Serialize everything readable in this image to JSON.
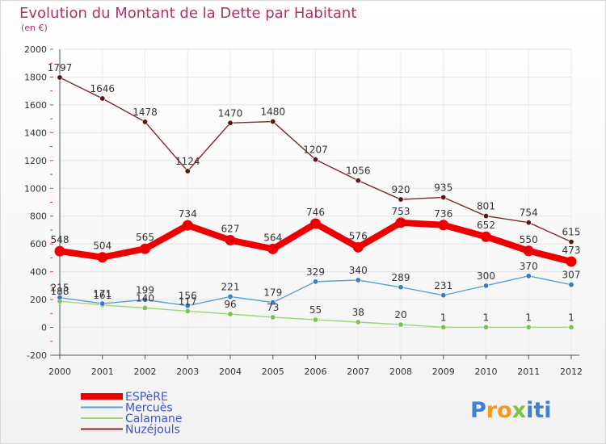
{
  "colors": {
    "title": "#b0306a",
    "axis": "#333333",
    "grid": "#e6e6e6",
    "legend_text": "#3a55c8",
    "brand_p": "#3f7fd4",
    "brand_ro": "#f29a1c",
    "brand_x": "#7ec242",
    "brand_iti": "#3f7fd4"
  },
  "header": {
    "title": "Evolution du Montant de la Dette par Habitant",
    "subtitle": "(en €)"
  },
  "brand": {
    "p": "P",
    "ro": "ro",
    "x": "x",
    "iti": "iti"
  },
  "chart_data": {
    "type": "line",
    "title": "Evolution du Montant de la Dette par Habitant",
    "subtitle": "(en €)",
    "x": [
      2000,
      2001,
      2002,
      2003,
      2004,
      2005,
      2006,
      2007,
      2008,
      2009,
      2010,
      2011,
      2012
    ],
    "ylim": [
      -200,
      2000
    ],
    "yticks": [
      -200,
      0,
      200,
      400,
      600,
      800,
      1000,
      1200,
      1400,
      1600,
      1800,
      2000
    ],
    "grid": true,
    "legend_position": "bottom-left",
    "series": [
      {
        "name": "ESPèRE",
        "color": "#ee0000",
        "emphasis": "thick",
        "values": [
          548,
          504,
          565,
          734,
          627,
          564,
          746,
          576,
          753,
          736,
          652,
          550,
          473
        ],
        "labels": [
          "548",
          "504",
          "565",
          "734",
          "627",
          "564",
          "746",
          "576",
          "753",
          "736",
          "652",
          "550",
          "473"
        ]
      },
      {
        "name": "Mercuès",
        "color": "#5a9fd4",
        "dot": "#3a78c8",
        "values": [
          215,
          171,
          199,
          156,
          221,
          179,
          329,
          340,
          289,
          231,
          300,
          370,
          307
        ],
        "labels": [
          "215",
          "171",
          "199",
          "156",
          "221",
          "179",
          "329",
          "340",
          "289",
          "231",
          "300",
          "370",
          "307"
        ]
      },
      {
        "name": "Calamane",
        "color": "#9ed676",
        "dot": "#7cc24e",
        "values": [
          188,
          161,
          140,
          117,
          96,
          73,
          55,
          38,
          20,
          1,
          1,
          1,
          1
        ],
        "labels": [
          "188",
          "161",
          "140",
          "117",
          "96",
          "73",
          "55",
          "38",
          "20",
          "1",
          "1",
          "1",
          "1"
        ]
      },
      {
        "name": "Nuzéjouls",
        "color": "#7a2a2a",
        "dot": "#5c1515",
        "values": [
          1797,
          1646,
          1478,
          1124,
          1470,
          1480,
          1207,
          1056,
          920,
          935,
          801,
          754,
          615
        ],
        "labels": [
          "1797",
          "1646",
          "1478",
          "1124",
          "1470",
          "1480",
          "1207",
          "1056",
          "920",
          "935",
          "801",
          "754",
          "615"
        ]
      }
    ]
  }
}
